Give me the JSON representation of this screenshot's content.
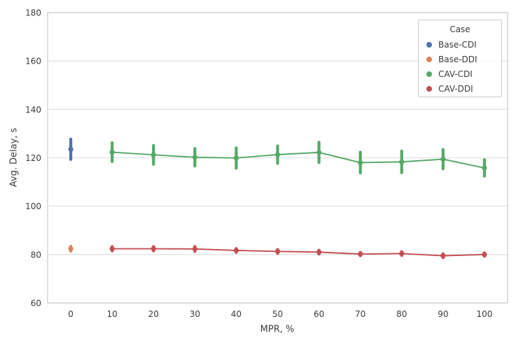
{
  "figure": {
    "background": "#ffffff",
    "frame_color": "#cfcfcf",
    "grid_color": "#e7e7e7",
    "text_color": "#3b3b3b"
  },
  "legend": {
    "title": "Case",
    "items": [
      {
        "label": "Base-CDI",
        "color": "#4C72B0"
      },
      {
        "label": "Base-DDI",
        "color": "#DD8452"
      },
      {
        "label": "CAV-CDI",
        "color": "#55A868"
      },
      {
        "label": "CAV-DDI",
        "color": "#C44E52"
      }
    ]
  },
  "chart_data": {
    "type": "line",
    "title": "",
    "xlabel": "MPR, %",
    "ylabel": "Avg. Delay, s",
    "xlim": [
      -5.6,
      105.6
    ],
    "ylim": [
      60,
      180
    ],
    "xticks": [
      0,
      10,
      20,
      30,
      40,
      50,
      60,
      70,
      80,
      90,
      100
    ],
    "yticks": [
      60,
      80,
      100,
      120,
      140,
      160,
      180
    ],
    "grid": "horizontal-only",
    "legend_position": "upper right",
    "series": [
      {
        "name": "Base-CDI",
        "color": "#4C72B0",
        "draw_line": false,
        "x": [
          0
        ],
        "y": [
          123.5
        ],
        "yerr": [
          4.2
        ]
      },
      {
        "name": "Base-DDI",
        "color": "#DD8452",
        "draw_line": false,
        "x": [
          0
        ],
        "y": [
          82.4
        ],
        "yerr": [
          1.0
        ]
      },
      {
        "name": "CAV-CDI",
        "color": "#55A868",
        "draw_line": true,
        "x": [
          10,
          20,
          30,
          40,
          50,
          60,
          70,
          80,
          90,
          100
        ],
        "y": [
          122.3,
          121.2,
          120.2,
          119.9,
          121.3,
          122.2,
          118.0,
          118.3,
          119.4,
          115.8
        ],
        "yerr": [
          3.9,
          3.9,
          3.6,
          4.2,
          3.6,
          4.2,
          4.3,
          4.5,
          4.0,
          3.4
        ]
      },
      {
        "name": "CAV-DDI",
        "color": "#C44E52",
        "draw_line": true,
        "x": [
          10,
          20,
          30,
          40,
          50,
          60,
          70,
          80,
          90,
          100
        ],
        "y": [
          82.4,
          82.4,
          82.3,
          81.7,
          81.3,
          81.0,
          80.2,
          80.4,
          79.5,
          80.0
        ],
        "yerr": [
          0.9,
          0.9,
          1.0,
          0.8,
          0.8,
          0.8,
          0.7,
          0.8,
          0.8,
          0.7
        ]
      }
    ]
  }
}
